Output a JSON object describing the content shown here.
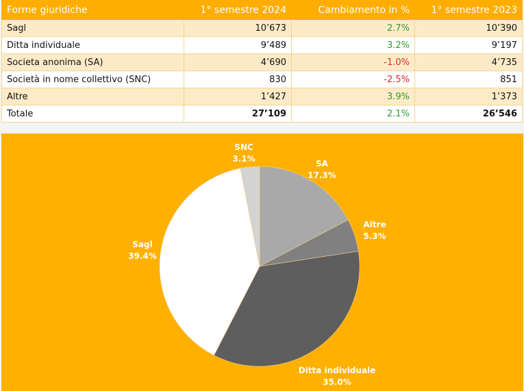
{
  "table": {
    "headers": [
      "Forme giuridiche",
      "1° semestre 2024",
      "Cambiamento in %",
      "1° semestre 2023"
    ],
    "rows": [
      {
        "name": "Sagl",
        "y2024": "10’673",
        "change": "2.7%",
        "y2023": "10’390",
        "trend": "pos"
      },
      {
        "name": "Ditta individuale",
        "y2024": "9’489",
        "change": "3.2%",
        "y2023": "9’197",
        "trend": "pos"
      },
      {
        "name": "Societa anonima (SA)",
        "y2024": "4’690",
        "change": "-1.0%",
        "y2023": "4’735",
        "trend": "neg"
      },
      {
        "name": "Società in nome collettivo (SNC)",
        "y2024": "830",
        "change": "-2.5%",
        "y2023": "851",
        "trend": "neg"
      },
      {
        "name": "Altre",
        "y2024": "1’427",
        "change": "3.9%",
        "y2023": "1’373",
        "trend": "pos"
      }
    ],
    "total": {
      "name": "Totale",
      "y2024": "27’109",
      "change": "2.1%",
      "y2023": "26’546",
      "trend": "pos"
    }
  },
  "colors": {
    "accent": "#ffb000",
    "positive": "#2e9b2e",
    "negative": "#e8262a"
  },
  "chart_data": {
    "type": "pie",
    "title": "",
    "start": "top, clockwise",
    "slices": [
      {
        "label": "SA",
        "value": 17.3,
        "value_label": "17.3%",
        "color": "#a9a9a9"
      },
      {
        "label": "Altre",
        "value": 5.3,
        "value_label": "5.3%",
        "color": "#808080"
      },
      {
        "label": "Ditta individuale",
        "value": 35.0,
        "value_label": "35.0%",
        "color": "#5e5e5e"
      },
      {
        "label": "Sagl",
        "value": 39.4,
        "value_label": "39.4%",
        "color": "#ffffff"
      },
      {
        "label": "SNC",
        "value": 3.1,
        "value_label": "3.1%",
        "color": "#d3d3d3"
      }
    ]
  }
}
